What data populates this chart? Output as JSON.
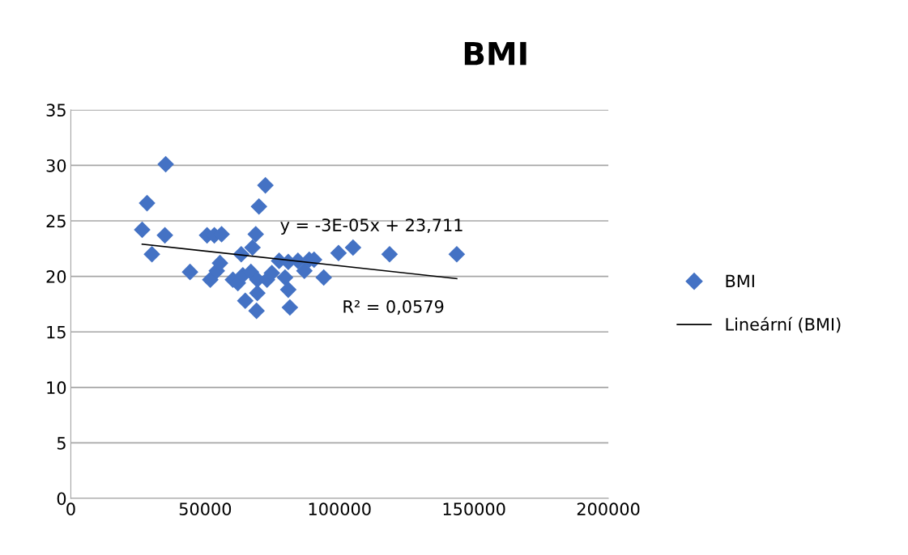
{
  "chart_data": {
    "type": "scatter",
    "title": "BMI",
    "xlim": [
      0,
      200000
    ],
    "xticks": [
      0,
      50000,
      100000,
      150000,
      200000
    ],
    "ylim": [
      0,
      35
    ],
    "yticks": [
      0,
      5,
      10,
      15,
      20,
      25,
      30,
      35
    ],
    "grid": "y",
    "legend": "right",
    "marker": "diamond",
    "series": [
      {
        "name": "BMI",
        "color": "#4472c4",
        "x": [
          26550,
          28360,
          30170,
          35300,
          35000,
          44350,
          50690,
          51900,
          53400,
          54300,
          56100,
          55500,
          60300,
          62150,
          63400,
          64000,
          64900,
          67000,
          67600,
          68800,
          69400,
          69400,
          69100,
          70000,
          72400,
          73000,
          74800,
          77500,
          79700,
          80900,
          81500,
          80900,
          84500,
          86900,
          88700,
          90500,
          94100,
          99600,
          105000,
          118600,
          143600
        ],
        "values": [
          24.2,
          26.6,
          22.0,
          30.1,
          23.7,
          20.4,
          23.7,
          19.7,
          23.7,
          20.5,
          23.8,
          21.2,
          19.7,
          19.4,
          22.0,
          20.1,
          17.8,
          20.4,
          22.6,
          23.8,
          19.7,
          18.5,
          16.9,
          26.3,
          28.2,
          19.7,
          20.3,
          21.4,
          19.9,
          18.8,
          17.2,
          21.3,
          21.4,
          20.5,
          21.5,
          21.5,
          19.9,
          22.1,
          22.6,
          22.0,
          22.0
        ]
      },
      {
        "name": "Lineární (BMI)",
        "type": "line",
        "marker": "none",
        "color": "#000000",
        "x": [
          26550,
          143600
        ],
        "values": [
          22.9,
          19.8
        ]
      }
    ],
    "annotations": [
      "y = -3E-05x + 23,711",
      "R² = 0,0579"
    ]
  }
}
